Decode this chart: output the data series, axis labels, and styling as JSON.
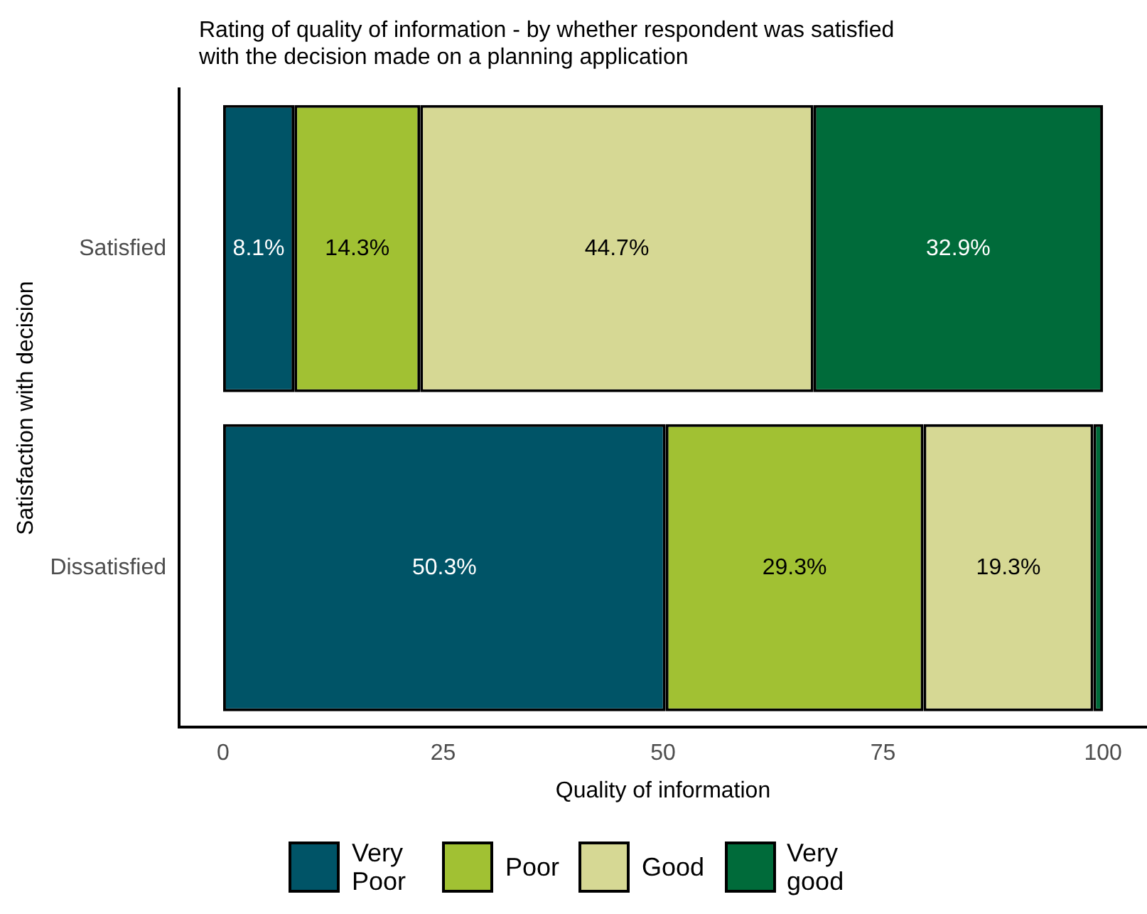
{
  "chart_data": {
    "type": "bar",
    "orientation": "horizontal",
    "stacked": true,
    "title": "Rating of quality of information - by whether respondent was satisfied with the decision made on a planning application",
    "xlabel": "Quality of information",
    "ylabel": "Satisfaction with decision",
    "categories": [
      "Satisfied",
      "Dissatisfied"
    ],
    "xlim": [
      -5,
      105
    ],
    "xticks": [
      0,
      25,
      50,
      75,
      100
    ],
    "grid": false,
    "legend": "bottom",
    "series": [
      {
        "name": "Very Poor",
        "color": "#005467",
        "values": [
          8.1,
          50.3
        ],
        "value_labels": [
          "8.1%",
          "50.3%"
        ]
      },
      {
        "name": "Poor",
        "color": "#a1c133",
        "values": [
          14.3,
          29.3
        ],
        "value_labels": [
          "14.3%",
          "29.3%"
        ]
      },
      {
        "name": "Good",
        "color": "#d6d894",
        "values": [
          44.7,
          19.3
        ],
        "value_labels": [
          "44.7%",
          "19.3%"
        ]
      },
      {
        "name": "Very good",
        "color": "#006b3a",
        "values": [
          32.9,
          1.1
        ],
        "value_labels": [
          "32.9%",
          null
        ]
      }
    ]
  }
}
